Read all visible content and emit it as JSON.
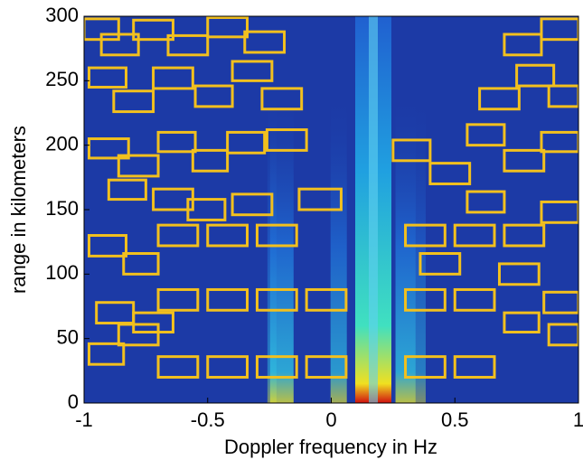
{
  "chart_data": {
    "type": "spectrogram",
    "xlabel": "Doppler frequency in Hz",
    "ylabel": "range in kilometers",
    "xlim": [
      -1,
      1
    ],
    "ylim": [
      0,
      300
    ],
    "xticks": [
      -1,
      -0.5,
      0,
      0.5,
      1
    ],
    "yticks": [
      0,
      50,
      100,
      150,
      200,
      250,
      300
    ],
    "box_color": "#f2c01e",
    "background_color": "#1c3aa6",
    "boxes": [
      {
        "x": [
          -0.7,
          -0.54
        ],
        "y": [
          20,
          36
        ]
      },
      {
        "x": [
          -0.5,
          -0.34
        ],
        "y": [
          20,
          36
        ]
      },
      {
        "x": [
          -0.3,
          -0.14
        ],
        "y": [
          20,
          36
        ]
      },
      {
        "x": [
          -0.1,
          0.06
        ],
        "y": [
          20,
          36
        ]
      },
      {
        "x": [
          0.3,
          0.46
        ],
        "y": [
          20,
          36
        ]
      },
      {
        "x": [
          0.5,
          0.66
        ],
        "y": [
          20,
          36
        ]
      },
      {
        "x": [
          -0.7,
          -0.54
        ],
        "y": [
          72,
          88
        ]
      },
      {
        "x": [
          -0.5,
          -0.34
        ],
        "y": [
          72,
          88
        ]
      },
      {
        "x": [
          -0.3,
          -0.14
        ],
        "y": [
          72,
          88
        ]
      },
      {
        "x": [
          -0.1,
          0.06
        ],
        "y": [
          72,
          88
        ]
      },
      {
        "x": [
          0.3,
          0.46
        ],
        "y": [
          72,
          88
        ]
      },
      {
        "x": [
          0.5,
          0.66
        ],
        "y": [
          72,
          88
        ]
      },
      {
        "x": [
          -1.0,
          -0.86
        ],
        "y": [
          282,
          298
        ]
      },
      {
        "x": [
          -0.93,
          -0.78
        ],
        "y": [
          270,
          286
        ]
      },
      {
        "x": [
          -0.8,
          -0.64
        ],
        "y": [
          282,
          297
        ]
      },
      {
        "x": [
          -0.66,
          -0.5
        ],
        "y": [
          270,
          285
        ]
      },
      {
        "x": [
          -0.5,
          -0.34
        ],
        "y": [
          284,
          299
        ]
      },
      {
        "x": [
          -0.35,
          -0.19
        ],
        "y": [
          272,
          288
        ]
      },
      {
        "x": [
          -0.98,
          -0.83
        ],
        "y": [
          245,
          260
        ]
      },
      {
        "x": [
          -0.88,
          -0.72
        ],
        "y": [
          226,
          242
        ]
      },
      {
        "x": [
          -0.72,
          -0.56
        ],
        "y": [
          244,
          260
        ]
      },
      {
        "x": [
          -0.55,
          -0.4
        ],
        "y": [
          230,
          246
        ]
      },
      {
        "x": [
          -0.4,
          -0.24
        ],
        "y": [
          250,
          265
        ]
      },
      {
        "x": [
          -0.28,
          -0.12
        ],
        "y": [
          228,
          244
        ]
      },
      {
        "x": [
          -0.98,
          -0.82
        ],
        "y": [
          190,
          205
        ]
      },
      {
        "x": [
          -0.86,
          -0.7
        ],
        "y": [
          176,
          192
        ]
      },
      {
        "x": [
          -0.7,
          -0.55
        ],
        "y": [
          195,
          210
        ]
      },
      {
        "x": [
          -0.56,
          -0.42
        ],
        "y": [
          180,
          196
        ]
      },
      {
        "x": [
          -0.42,
          -0.27
        ],
        "y": [
          194,
          210
        ]
      },
      {
        "x": [
          -0.26,
          -0.1
        ],
        "y": [
          196,
          212
        ]
      },
      {
        "x": [
          -0.9,
          -0.75
        ],
        "y": [
          158,
          173
        ]
      },
      {
        "x": [
          -0.72,
          -0.56
        ],
        "y": [
          150,
          166
        ]
      },
      {
        "x": [
          -0.58,
          -0.43
        ],
        "y": [
          142,
          158
        ]
      },
      {
        "x": [
          -0.4,
          -0.24
        ],
        "y": [
          146,
          162
        ]
      },
      {
        "x": [
          -0.13,
          0.04
        ],
        "y": [
          150,
          166
        ]
      },
      {
        "x": [
          -0.98,
          -0.83
        ],
        "y": [
          114,
          130
        ]
      },
      {
        "x": [
          -0.84,
          -0.7
        ],
        "y": [
          100,
          116
        ]
      },
      {
        "x": [
          -0.7,
          -0.54
        ],
        "y": [
          122,
          138
        ]
      },
      {
        "x": [
          -0.5,
          -0.34
        ],
        "y": [
          122,
          138
        ]
      },
      {
        "x": [
          -0.3,
          -0.14
        ],
        "y": [
          122,
          138
        ]
      },
      {
        "x": [
          -0.95,
          -0.8
        ],
        "y": [
          62,
          78
        ]
      },
      {
        "x": [
          -0.86,
          -0.7
        ],
        "y": [
          45,
          61
        ]
      },
      {
        "x": [
          -0.98,
          -0.84
        ],
        "y": [
          30,
          46
        ]
      },
      {
        "x": [
          -0.8,
          -0.64
        ],
        "y": [
          55,
          70
        ]
      },
      {
        "x": [
          0.25,
          0.4
        ],
        "y": [
          188,
          204
        ]
      },
      {
        "x": [
          0.4,
          0.56
        ],
        "y": [
          170,
          186
        ]
      },
      {
        "x": [
          0.55,
          0.7
        ],
        "y": [
          200,
          216
        ]
      },
      {
        "x": [
          0.7,
          0.86
        ],
        "y": [
          180,
          196
        ]
      },
      {
        "x": [
          0.85,
          1.0
        ],
        "y": [
          195,
          210
        ]
      },
      {
        "x": [
          0.6,
          0.76
        ],
        "y": [
          228,
          244
        ]
      },
      {
        "x": [
          0.75,
          0.9
        ],
        "y": [
          246,
          262
        ]
      },
      {
        "x": [
          0.88,
          1.0
        ],
        "y": [
          230,
          246
        ]
      },
      {
        "x": [
          0.7,
          0.85
        ],
        "y": [
          270,
          286
        ]
      },
      {
        "x": [
          0.85,
          1.0
        ],
        "y": [
          282,
          298
        ]
      },
      {
        "x": [
          0.3,
          0.46
        ],
        "y": [
          122,
          138
        ]
      },
      {
        "x": [
          0.5,
          0.66
        ],
        "y": [
          122,
          138
        ]
      },
      {
        "x": [
          0.7,
          0.86
        ],
        "y": [
          122,
          138
        ]
      },
      {
        "x": [
          0.85,
          1.0
        ],
        "y": [
          140,
          156
        ]
      },
      {
        "x": [
          0.36,
          0.52
        ],
        "y": [
          100,
          116
        ]
      },
      {
        "x": [
          0.68,
          0.84
        ],
        "y": [
          92,
          108
        ]
      },
      {
        "x": [
          0.86,
          1.0
        ],
        "y": [
          70,
          86
        ]
      },
      {
        "x": [
          0.88,
          1.0
        ],
        "y": [
          45,
          61
        ]
      },
      {
        "x": [
          0.7,
          0.84
        ],
        "y": [
          55,
          70
        ]
      },
      {
        "x": [
          0.55,
          0.7
        ],
        "y": [
          148,
          164
        ]
      }
    ]
  }
}
